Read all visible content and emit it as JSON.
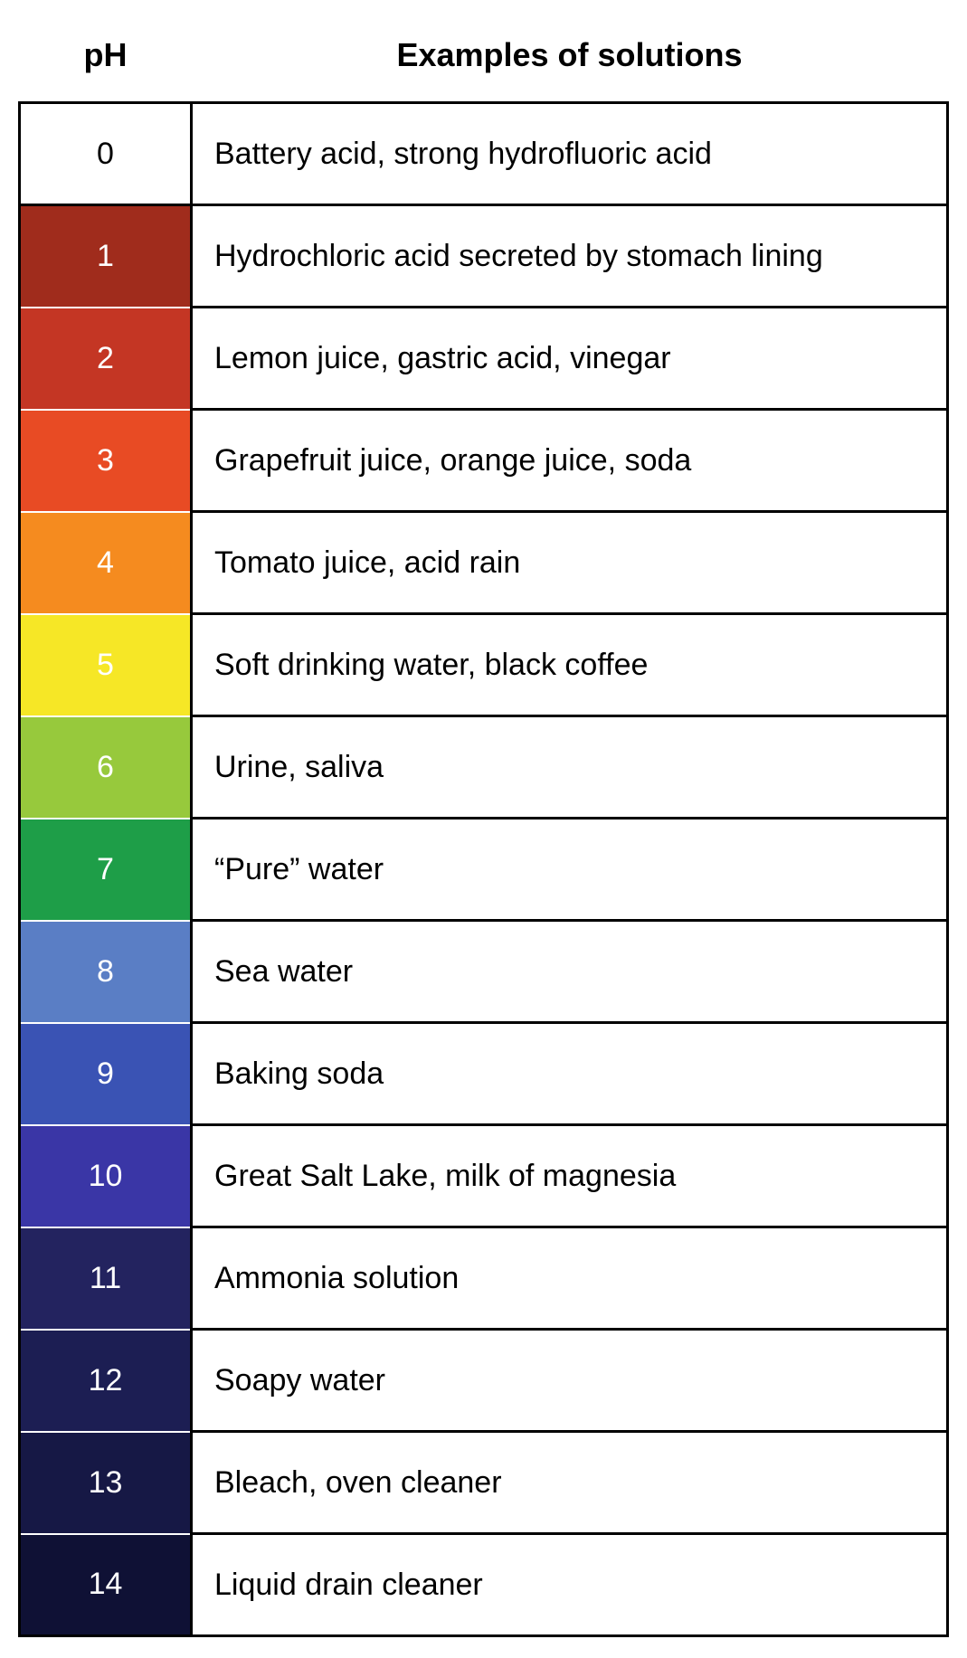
{
  "headers": {
    "ph": "pH",
    "examples": "Examples of solutions"
  },
  "rows": [
    {
      "ph": "0",
      "example": "Battery acid, strong hydrofluoric acid",
      "bg_color": "#ffffff",
      "text_color": "#000000"
    },
    {
      "ph": "1",
      "example": "Hydrochloric acid secreted by stomach lining",
      "bg_color": "#a02c1c",
      "text_color": "#ffffff"
    },
    {
      "ph": "2",
      "example": "Lemon juice, gastric acid, vinegar",
      "bg_color": "#c43624",
      "text_color": "#ffffff"
    },
    {
      "ph": "3",
      "example": "Grapefruit juice, orange juice, soda",
      "bg_color": "#e84b24",
      "text_color": "#ffffff"
    },
    {
      "ph": "4",
      "example": "Tomato juice, acid rain",
      "bg_color": "#f58b1f",
      "text_color": "#ffffff"
    },
    {
      "ph": "5",
      "example": "Soft drinking water, black coffee",
      "bg_color": "#f6e726",
      "text_color": "#ffffff"
    },
    {
      "ph": "6",
      "example": "Urine, saliva",
      "bg_color": "#97c93c",
      "text_color": "#ffffff"
    },
    {
      "ph": "7",
      "example": "“Pure” water",
      "bg_color": "#1e9e48",
      "text_color": "#ffffff"
    },
    {
      "ph": "8",
      "example": "Sea water",
      "bg_color": "#5a7ec5",
      "text_color": "#ffffff"
    },
    {
      "ph": "9",
      "example": "Baking soda",
      "bg_color": "#3a53b4",
      "text_color": "#ffffff"
    },
    {
      "ph": "10",
      "example": "Great Salt Lake, milk of magnesia",
      "bg_color": "#3a36a6",
      "text_color": "#ffffff"
    },
    {
      "ph": "11",
      "example": "Ammonia solution",
      "bg_color": "#23235f",
      "text_color": "#ffffff"
    },
    {
      "ph": "12",
      "example": "Soapy water",
      "bg_color": "#1c1e53",
      "text_color": "#ffffff"
    },
    {
      "ph": "13",
      "example": "Bleach, oven cleaner",
      "bg_color": "#161845",
      "text_color": "#ffffff"
    },
    {
      "ph": "14",
      "example": "Liquid drain cleaner",
      "bg_color": "#0f1135",
      "text_color": "#ffffff"
    }
  ]
}
